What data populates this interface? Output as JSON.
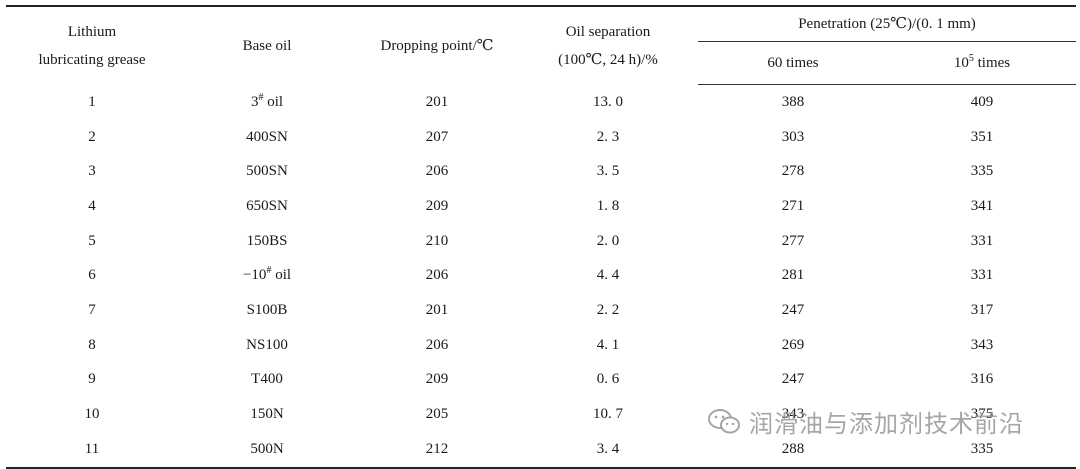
{
  "headers": {
    "col1": "Lithium lubricating grease",
    "col2": "Base oil",
    "col3": "Dropping point/℃",
    "col4_line1": "Oil separation",
    "col4_line2": "(100℃, 24 h)/%",
    "penetration_group": "Penetration (25℃)/(0. 1 mm)",
    "pen_60": "60 times",
    "pen_1e5_base": "10",
    "pen_1e5_exp": "5",
    "pen_1e5_suffix": " times"
  },
  "rows": [
    {
      "no": "1",
      "oil_base": "3",
      "oil_sup": "#",
      "oil_suffix": " oil",
      "dp": "201",
      "sep": "13. 0",
      "p60": "388",
      "p1e5": "409"
    },
    {
      "no": "2",
      "oil_base": "400SN",
      "oil_sup": "",
      "oil_suffix": "",
      "dp": "207",
      "sep": "2. 3",
      "p60": "303",
      "p1e5": "351"
    },
    {
      "no": "3",
      "oil_base": "500SN",
      "oil_sup": "",
      "oil_suffix": "",
      "dp": "206",
      "sep": "3. 5",
      "p60": "278",
      "p1e5": "335"
    },
    {
      "no": "4",
      "oil_base": "650SN",
      "oil_sup": "",
      "oil_suffix": "",
      "dp": "209",
      "sep": "1. 8",
      "p60": "271",
      "p1e5": "341"
    },
    {
      "no": "5",
      "oil_base": "150BS",
      "oil_sup": "",
      "oil_suffix": "",
      "dp": "210",
      "sep": "2. 0",
      "p60": "277",
      "p1e5": "331"
    },
    {
      "no": "6",
      "oil_base": "−10",
      "oil_sup": "#",
      "oil_suffix": " oil",
      "dp": "206",
      "sep": "4. 4",
      "p60": "281",
      "p1e5": "331"
    },
    {
      "no": "7",
      "oil_base": "S100B",
      "oil_sup": "",
      "oil_suffix": "",
      "dp": "201",
      "sep": "2. 2",
      "p60": "247",
      "p1e5": "317"
    },
    {
      "no": "8",
      "oil_base": "NS100",
      "oil_sup": "",
      "oil_suffix": "",
      "dp": "206",
      "sep": "4. 1",
      "p60": "269",
      "p1e5": "343"
    },
    {
      "no": "9",
      "oil_base": "T400",
      "oil_sup": "",
      "oil_suffix": "",
      "dp": "209",
      "sep": "0. 6",
      "p60": "247",
      "p1e5": "316"
    },
    {
      "no": "10",
      "oil_base": "150N",
      "oil_sup": "",
      "oil_suffix": "",
      "dp": "205",
      "sep": "10. 7",
      "p60": "343",
      "p1e5": "375"
    },
    {
      "no": "11",
      "oil_base": "500N",
      "oil_sup": "",
      "oil_suffix": "",
      "dp": "212",
      "sep": "3. 4",
      "p60": "288",
      "p1e5": "335"
    }
  ],
  "watermark": {
    "text": "润滑油与添加剂技术前沿",
    "icon": "wechat-icon"
  }
}
